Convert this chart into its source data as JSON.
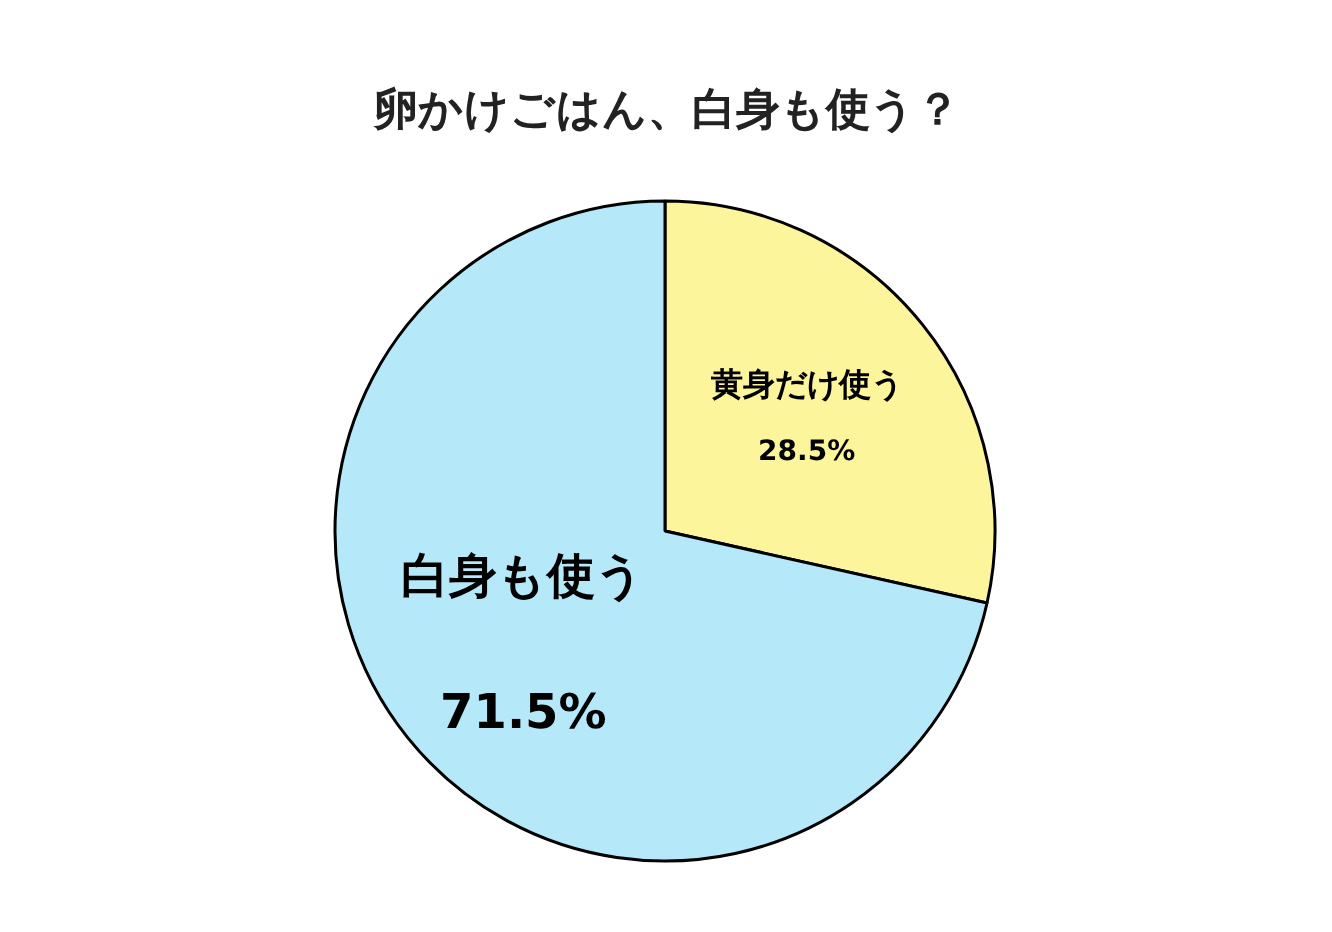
{
  "chart_data": {
    "type": "pie",
    "title": "卵かけごはん、白身も使う？",
    "categories": [
      "黄身だけ使う",
      "白身も使う"
    ],
    "values": [
      28.5,
      71.5
    ],
    "value_labels": [
      "28.5%",
      "71.5%"
    ],
    "colors": [
      "#fdf59c",
      "#b5e8f8"
    ]
  }
}
